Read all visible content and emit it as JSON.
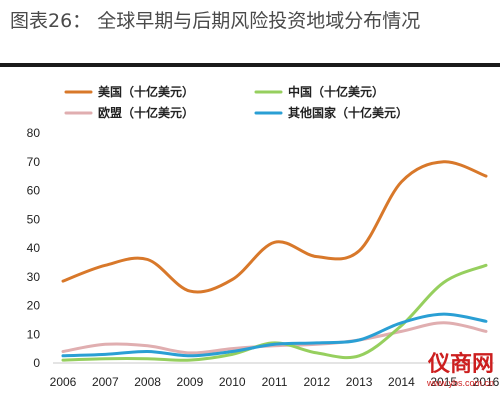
{
  "title": "图表26：  全球早期与后期风险投资地域分布情况",
  "watermark": {
    "text": "仪商网",
    "url": "www.ybs.com.cn"
  },
  "colors": {
    "us": "#d8782a",
    "china": "#96cf5e",
    "eu": "#e0aeb0",
    "other": "#2a9fd4"
  },
  "chart_data": {
    "type": "line",
    "x": [
      2006,
      2007,
      2008,
      2009,
      2010,
      2011,
      2012,
      2013,
      2014,
      2015,
      2016
    ],
    "ylim": [
      0,
      80
    ],
    "yticks": [
      0,
      10,
      20,
      30,
      40,
      50,
      60,
      70,
      80
    ],
    "series": [
      {
        "key": "us",
        "name": "美国（十亿美元）",
        "values": [
          28.5,
          34,
          36,
          25,
          29,
          42,
          37,
          39,
          63,
          70,
          65
        ]
      },
      {
        "key": "china",
        "name": "中国（十亿美元）",
        "values": [
          1,
          1.5,
          1.5,
          1,
          3,
          7,
          3.5,
          2.5,
          13,
          28,
          34
        ]
      },
      {
        "key": "eu",
        "name": "欧盟（十亿美元）",
        "values": [
          4,
          6.5,
          6,
          3.5,
          5,
          6,
          6.5,
          8,
          11,
          14,
          11
        ]
      },
      {
        "key": "other",
        "name": "其他国家（十亿美元）",
        "values": [
          2.5,
          3,
          4,
          2.5,
          4,
          6.5,
          7,
          8,
          14,
          17,
          14.5
        ]
      }
    ]
  }
}
